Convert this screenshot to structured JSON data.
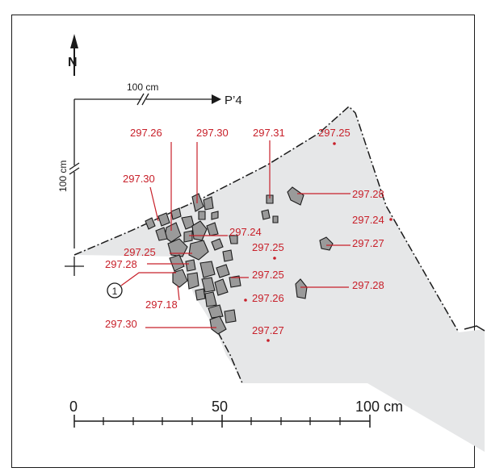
{
  "north": {
    "label": "N"
  },
  "reference": {
    "horizontal_label": "100 cm",
    "vertical_label": "100 cm",
    "section_label": "P’4"
  },
  "scale_bar": {
    "labels": [
      "0",
      "50",
      "100 cm"
    ]
  },
  "marker": {
    "label": "1"
  },
  "elevations": [
    "297.26",
    "297.30",
    "297.31",
    "297.25",
    "297.30",
    "297.28",
    "297.24",
    "297.24",
    "297.25",
    "297.27",
    "297.25",
    "297.28",
    "297.25",
    "297.18",
    "297.26",
    "297.28",
    "297.30",
    "297.27"
  ],
  "colors": {
    "elevation_text": "#c8202a",
    "excavated_area": "#e6e7e8",
    "stone_fill": "#9a9a9a",
    "line": "#1a1a1a"
  }
}
